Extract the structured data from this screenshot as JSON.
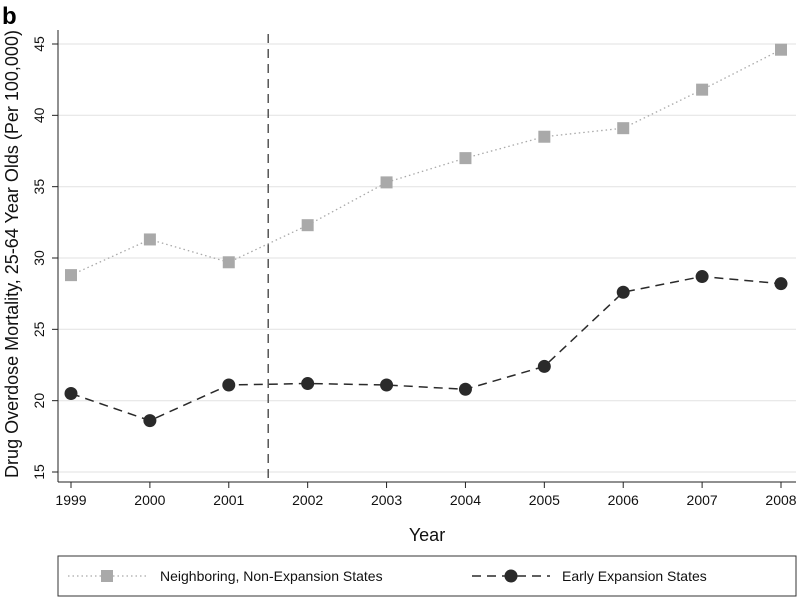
{
  "panel_label": "b",
  "chart_data": {
    "type": "line",
    "title": "",
    "xlabel": "Year",
    "ylabel": "Drug Overdose Mortality, 25-64 Year Olds (Per 100,000)",
    "x": [
      1999,
      2000,
      2001,
      2002,
      2003,
      2004,
      2005,
      2006,
      2007,
      2008
    ],
    "x_tick_labels": [
      "1999",
      "2000",
      "2001",
      "2002",
      "2003",
      "2004",
      "2005",
      "2006",
      "2007",
      "2008"
    ],
    "xlim": [
      1999,
      2008
    ],
    "ylim": [
      15,
      45
    ],
    "y_ticks": [
      15,
      20,
      25,
      30,
      35,
      40,
      45
    ],
    "y_tick_labels": [
      "15",
      "20",
      "25",
      "30",
      "35",
      "40",
      "45"
    ],
    "grid": true,
    "reference_line": {
      "x": 2001.5,
      "style": "dashed"
    },
    "legend_position": "bottom",
    "series": [
      {
        "name": "Neighboring, Non-Expansion States",
        "marker": "square",
        "line_style": "dotted",
        "color": "#a9a9a9",
        "values": [
          28.8,
          31.3,
          29.7,
          32.3,
          35.3,
          37.0,
          38.5,
          39.1,
          41.8,
          44.6
        ]
      },
      {
        "name": "Early Expansion States",
        "marker": "circle",
        "line_style": "dashed",
        "color": "#2a2a2a",
        "values": [
          20.5,
          18.6,
          21.1,
          21.2,
          21.1,
          20.8,
          22.4,
          27.6,
          28.7,
          28.2
        ]
      }
    ]
  }
}
